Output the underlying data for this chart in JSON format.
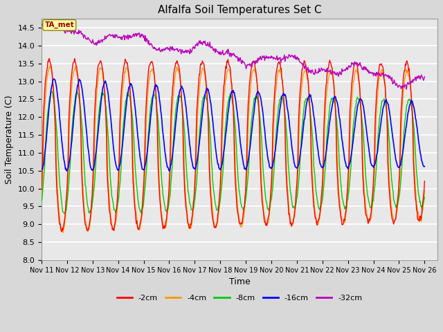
{
  "title": "Alfalfa Soil Temperatures Set C",
  "xlabel": "Time",
  "ylabel": "Soil Temperature (C)",
  "ylim": [
    8.0,
    14.75
  ],
  "xlim_days": 15.5,
  "xtick_labels": [
    "Nov 11",
    "Nov 12",
    "Nov 13",
    "Nov 14",
    "Nov 15",
    "Nov 16",
    "Nov 17",
    "Nov 18",
    "Nov 19",
    "Nov 20",
    "Nov 21",
    "Nov 22",
    "Nov 23",
    "Nov 24",
    "Nov 25",
    "Nov 26"
  ],
  "ytick_values": [
    8.0,
    8.5,
    9.0,
    9.5,
    10.0,
    10.5,
    11.0,
    11.5,
    12.0,
    12.5,
    13.0,
    13.5,
    14.0,
    14.5
  ],
  "colors": {
    "2cm": "#ff0000",
    "4cm": "#ff9900",
    "8cm": "#00cc00",
    "16cm": "#0000ff",
    "32cm": "#bb00bb"
  },
  "legend_labels": [
    "-2cm",
    "-4cm",
    "-8cm",
    "-16cm",
    "-32cm"
  ],
  "background_color": "#d8d8d8",
  "plot_bg_color": "#e8e8e8",
  "annotation_text": "TA_met",
  "annotation_color": "#990000",
  "annotation_bg": "#ffffaa",
  "figsize": [
    6.4,
    4.8
  ],
  "dpi": 100
}
